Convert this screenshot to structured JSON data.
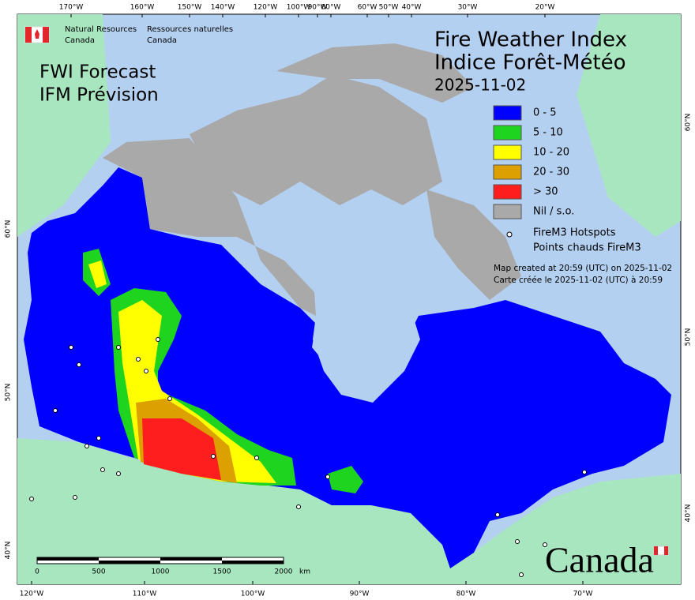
{
  "agency": {
    "en_line1": "Natural Resources",
    "en_line2": "Canada",
    "fr_line1": "Ressources naturelles",
    "fr_line2": "Canada"
  },
  "title": {
    "line1": "Fire Weather Index",
    "line2": "Indice Forêt-Météo",
    "date": "2025-11-02"
  },
  "product": {
    "line1": "FWI Forecast",
    "line2": "IFM Prévision"
  },
  "legend": {
    "items": [
      {
        "label": "0 - 5",
        "color": "#0000ff"
      },
      {
        "label": "5 - 10",
        "color": "#1ed41e"
      },
      {
        "label": "10 - 20",
        "color": "#ffff00"
      },
      {
        "label": "20 - 30",
        "color": "#dca000"
      },
      {
        "label": "> 30",
        "color": "#ff1e1e"
      },
      {
        "label": "Nil / s.o.",
        "color": "#a9a9a9"
      }
    ],
    "hotspots_line1": "FireM3 Hotspots",
    "hotspots_line2": "Points chauds FireM3"
  },
  "note": {
    "line1": "Map created at 20:59 (UTC) on 2025-11-02",
    "line2": "Carte créée le 2025-11-02 (UTC) à 20:59"
  },
  "scale": {
    "labels": [
      "0",
      "500",
      "1000",
      "1500",
      "2000"
    ],
    "unit": "km"
  },
  "graticule": {
    "top": [
      "170°W",
      "160°W",
      "150°W",
      "140°W",
      "120°W",
      "100°W",
      "90°W",
      "80°W",
      "60°W",
      "50°W",
      "40°W",
      "30°W",
      "20°W"
    ],
    "bottom": [
      "120°W",
      "110°W",
      "100°W",
      "90°W",
      "80°W",
      "70°W"
    ],
    "left": [
      "60°N",
      "50°N",
      "40°N"
    ],
    "right": [
      "60°N",
      "50°N",
      "40°N"
    ]
  },
  "wordmark": "Canada"
}
